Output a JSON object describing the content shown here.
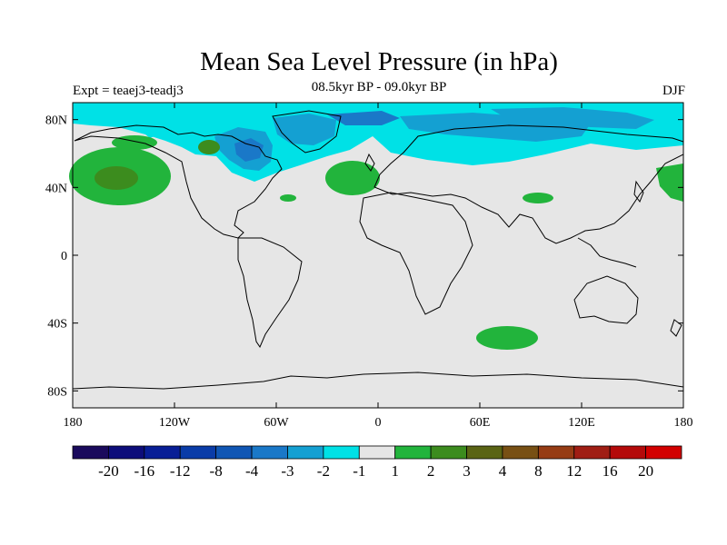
{
  "title": "Mean Sea Level Pressure (in hPa)",
  "left_label": "Expt = teaej3-teadj3",
  "center_label": "08.5kyr BP - 09.0kyr BP",
  "right_label": "DJF",
  "map": {
    "projection": "cylindrical-equidistant",
    "lon_range": [
      -180,
      180
    ],
    "lat_range": [
      -90,
      90
    ],
    "lon_ticks": [
      "180",
      "120W",
      "60W",
      "0",
      "60E",
      "120E",
      "180"
    ],
    "lat_ticks": [
      "80N",
      "40N",
      "0",
      "40S",
      "80S"
    ],
    "background_color": "#e6e6e6"
  },
  "colorbar": {
    "colors": [
      "#1a0a5c",
      "#0d0d7a",
      "#081e96",
      "#0a3ca8",
      "#1056b4",
      "#1a78c8",
      "#14a0d2",
      "#00e1e6",
      "#e6e6e6",
      "#22b43c",
      "#3c8c1e",
      "#5a6414",
      "#785014",
      "#963c14",
      "#a01e14",
      "#b40a0a",
      "#d20000"
    ],
    "labels": [
      "-20",
      "-16",
      "-12",
      "-8",
      "-4",
      "-3",
      "-2",
      "-1",
      "1",
      "2",
      "3",
      "4",
      "8",
      "12",
      "16",
      "20"
    ]
  }
}
